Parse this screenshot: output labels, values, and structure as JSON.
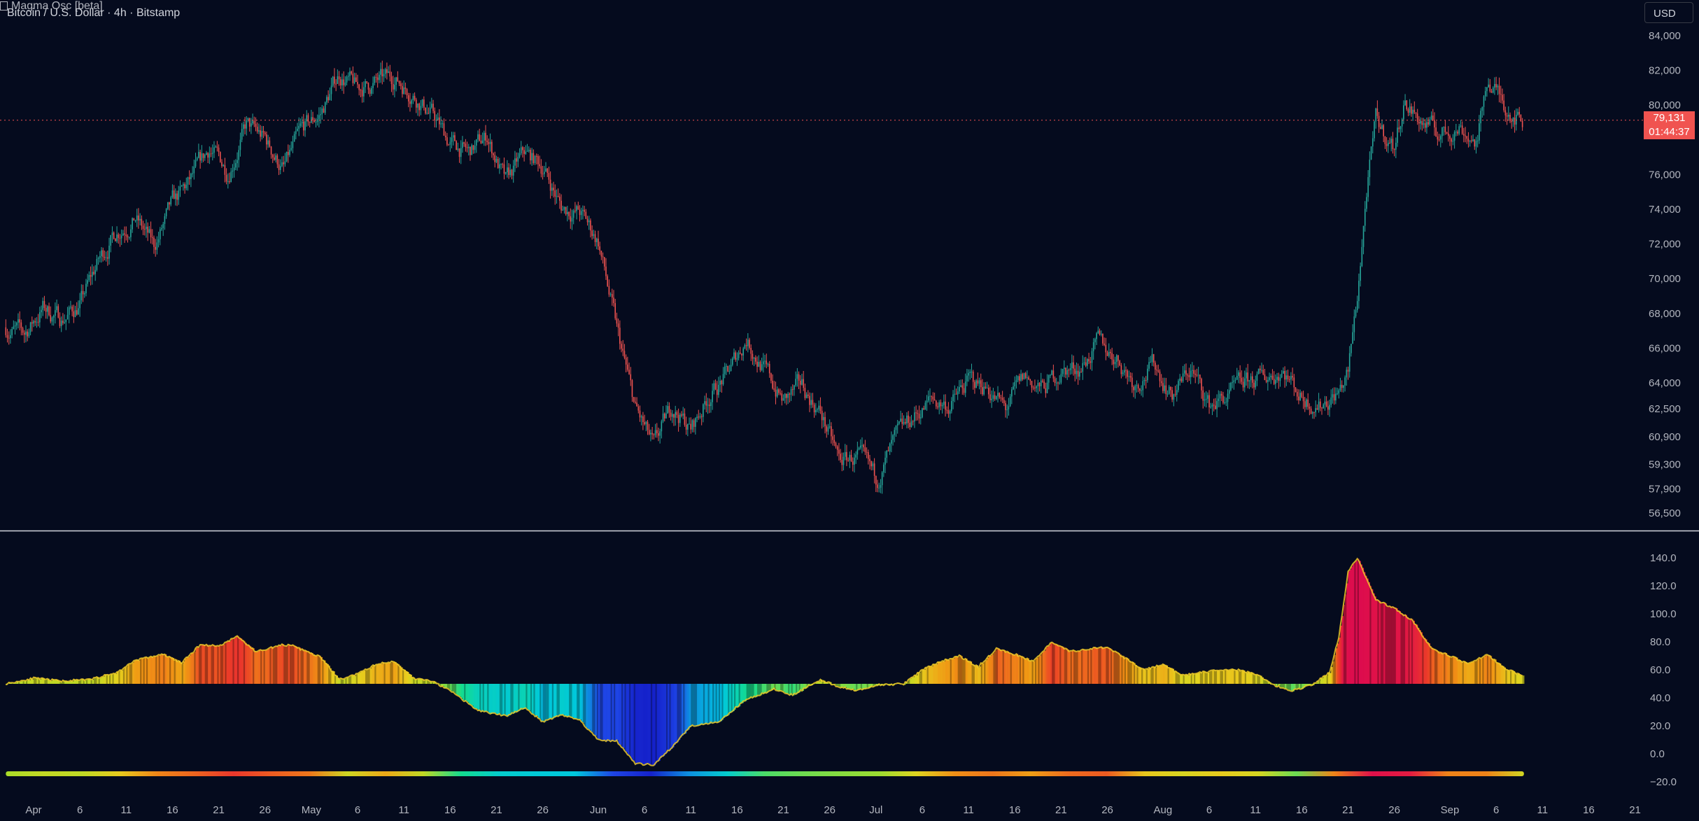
{
  "header": {
    "symbol_title": "Bitcoin / U.S. Dollar · 4h · Bitstamp",
    "currency_button": "USD"
  },
  "last_price": {
    "value": "79,131",
    "countdown": "01:44:37",
    "color": "#f05350"
  },
  "oscillator": {
    "title": "Magma Osc [beta]"
  },
  "colors": {
    "background": "#050b1e",
    "up_candle": "#26a69a",
    "down_candle": "#ef5350",
    "axis_text": "#b2b5be",
    "separator": "#d1d4dc"
  },
  "chart_data": [
    {
      "type": "candlestick",
      "title": "Bitcoin / U.S. Dollar · 4h · Bitstamp",
      "y_ticks": [
        84000,
        82000,
        80000,
        76000,
        74000,
        72000,
        70000,
        68000,
        66000,
        64000,
        62500,
        60900,
        59300,
        57900,
        56500
      ],
      "y_tick_labels": [
        "84,000",
        "82,000",
        "80,000",
        "76,000",
        "74,000",
        "72,000",
        "70,000",
        "68,000",
        "66,000",
        "64,000",
        "62,500",
        "60,900",
        "59,300",
        "57,900",
        "56,500"
      ],
      "last_price": 79131,
      "close_path": [
        {
          "date": "2024-03-29",
          "close": 67200
        },
        {
          "date": "2024-03-31",
          "close": 66800
        },
        {
          "date": "2024-04-02",
          "close": 68300
        },
        {
          "date": "2024-04-04",
          "close": 67700
        },
        {
          "date": "2024-04-06",
          "close": 68500
        },
        {
          "date": "2024-04-08",
          "close": 71000
        },
        {
          "date": "2024-04-10",
          "close": 72800
        },
        {
          "date": "2024-04-12",
          "close": 73500
        },
        {
          "date": "2024-04-14",
          "close": 71800
        },
        {
          "date": "2024-04-16",
          "close": 74200
        },
        {
          "date": "2024-04-18",
          "close": 75600
        },
        {
          "date": "2024-04-20",
          "close": 77500
        },
        {
          "date": "2024-04-22",
          "close": 76200
        },
        {
          "date": "2024-04-24",
          "close": 78800
        },
        {
          "date": "2024-04-26",
          "close": 78000
        },
        {
          "date": "2024-04-28",
          "close": 76300
        },
        {
          "date": "2024-04-30",
          "close": 78500
        },
        {
          "date": "2024-05-02",
          "close": 79500
        },
        {
          "date": "2024-05-04",
          "close": 81800
        },
        {
          "date": "2024-05-06",
          "close": 80900
        },
        {
          "date": "2024-05-08",
          "close": 81300
        },
        {
          "date": "2024-05-10",
          "close": 81600
        },
        {
          "date": "2024-05-12",
          "close": 80700
        },
        {
          "date": "2024-05-14",
          "close": 79500
        },
        {
          "date": "2024-05-16",
          "close": 77800
        },
        {
          "date": "2024-05-18",
          "close": 77200
        },
        {
          "date": "2024-05-20",
          "close": 78200
        },
        {
          "date": "2024-05-22",
          "close": 75500
        },
        {
          "date": "2024-05-24",
          "close": 77200
        },
        {
          "date": "2024-05-26",
          "close": 76500
        },
        {
          "date": "2024-05-28",
          "close": 74100
        },
        {
          "date": "2024-05-30",
          "close": 73800
        },
        {
          "date": "2024-06-01",
          "close": 72200
        },
        {
          "date": "2024-06-03",
          "close": 67000
        },
        {
          "date": "2024-06-05",
          "close": 62500
        },
        {
          "date": "2024-06-07",
          "close": 60200
        },
        {
          "date": "2024-06-09",
          "close": 62700
        },
        {
          "date": "2024-06-11",
          "close": 61300
        },
        {
          "date": "2024-06-13",
          "close": 63300
        },
        {
          "date": "2024-06-15",
          "close": 64500
        },
        {
          "date": "2024-06-17",
          "close": 66600
        },
        {
          "date": "2024-06-19",
          "close": 64700
        },
        {
          "date": "2024-06-21",
          "close": 62900
        },
        {
          "date": "2024-06-23",
          "close": 63800
        },
        {
          "date": "2024-06-25",
          "close": 62300
        },
        {
          "date": "2024-06-27",
          "close": 59500
        },
        {
          "date": "2024-06-29",
          "close": 59700
        },
        {
          "date": "2024-07-01",
          "close": 58400
        },
        {
          "date": "2024-07-03",
          "close": 60500
        },
        {
          "date": "2024-07-05",
          "close": 62000
        },
        {
          "date": "2024-07-07",
          "close": 63000
        },
        {
          "date": "2024-07-09",
          "close": 62700
        },
        {
          "date": "2024-07-11",
          "close": 64100
        },
        {
          "date": "2024-07-13",
          "close": 63800
        },
        {
          "date": "2024-07-15",
          "close": 62400
        },
        {
          "date": "2024-07-17",
          "close": 64300
        },
        {
          "date": "2024-07-19",
          "close": 63600
        },
        {
          "date": "2024-07-21",
          "close": 64700
        },
        {
          "date": "2024-07-23",
          "close": 64900
        },
        {
          "date": "2024-07-25",
          "close": 66200
        },
        {
          "date": "2024-07-27",
          "close": 65500
        },
        {
          "date": "2024-07-29",
          "close": 64000
        },
        {
          "date": "2024-07-31",
          "close": 65100
        },
        {
          "date": "2024-08-02",
          "close": 63300
        },
        {
          "date": "2024-08-04",
          "close": 64800
        },
        {
          "date": "2024-08-06",
          "close": 62700
        },
        {
          "date": "2024-08-08",
          "close": 63200
        },
        {
          "date": "2024-08-10",
          "close": 64000
        },
        {
          "date": "2024-08-12",
          "close": 64300
        },
        {
          "date": "2024-08-14",
          "close": 64800
        },
        {
          "date": "2024-08-16",
          "close": 63200
        },
        {
          "date": "2024-08-18",
          "close": 62800
        },
        {
          "date": "2024-08-20",
          "close": 63500
        },
        {
          "date": "2024-08-21",
          "close": 64500
        },
        {
          "date": "2024-08-22",
          "close": 69000
        },
        {
          "date": "2024-08-23",
          "close": 75000
        },
        {
          "date": "2024-08-24",
          "close": 79000
        },
        {
          "date": "2024-08-26",
          "close": 77500
        },
        {
          "date": "2024-08-27",
          "close": 80200
        },
        {
          "date": "2024-08-29",
          "close": 79000
        },
        {
          "date": "2024-08-31",
          "close": 78300
        },
        {
          "date": "2024-09-02",
          "close": 78800
        },
        {
          "date": "2024-09-04",
          "close": 77800
        },
        {
          "date": "2024-09-05",
          "close": 81500
        },
        {
          "date": "2024-09-07",
          "close": 80000
        },
        {
          "date": "2024-09-09",
          "close": 79131
        }
      ]
    },
    {
      "type": "area",
      "title": "Magma Osc [beta]",
      "y_ticks": [
        140,
        120,
        100,
        80,
        60,
        40,
        20,
        0,
        -20
      ],
      "y_tick_labels": [
        "140.0",
        "120.0",
        "100.0",
        "80.0",
        "60.0",
        "40.0",
        "20.0",
        "0.0",
        "−20.0"
      ],
      "baseline": 50,
      "series": [
        {
          "points": [
            {
              "date": "2024-03-29",
              "value": 50
            },
            {
              "date": "2024-04-01",
              "value": 54
            },
            {
              "date": "2024-04-04",
              "value": 52
            },
            {
              "date": "2024-04-07",
              "value": 53
            },
            {
              "date": "2024-04-10",
              "value": 58
            },
            {
              "date": "2024-04-12",
              "value": 67
            },
            {
              "date": "2024-04-15",
              "value": 71
            },
            {
              "date": "2024-04-17",
              "value": 65
            },
            {
              "date": "2024-04-19",
              "value": 78
            },
            {
              "date": "2024-04-21",
              "value": 77
            },
            {
              "date": "2024-04-23",
              "value": 84
            },
            {
              "date": "2024-04-25",
              "value": 73
            },
            {
              "date": "2024-04-28",
              "value": 78
            },
            {
              "date": "2024-04-29",
              "value": 77
            },
            {
              "date": "2024-05-02",
              "value": 69
            },
            {
              "date": "2024-05-04",
              "value": 53
            },
            {
              "date": "2024-05-06",
              "value": 57
            },
            {
              "date": "2024-05-08",
              "value": 64
            },
            {
              "date": "2024-05-10",
              "value": 66
            },
            {
              "date": "2024-05-12",
              "value": 54
            },
            {
              "date": "2024-05-14",
              "value": 52
            },
            {
              "date": "2024-05-16",
              "value": 45
            },
            {
              "date": "2024-05-19",
              "value": 31
            },
            {
              "date": "2024-05-22",
              "value": 27
            },
            {
              "date": "2024-05-24",
              "value": 33
            },
            {
              "date": "2024-05-26",
              "value": 23
            },
            {
              "date": "2024-05-28",
              "value": 28
            },
            {
              "date": "2024-05-30",
              "value": 24
            },
            {
              "date": "2024-06-01",
              "value": 10
            },
            {
              "date": "2024-06-03",
              "value": 9
            },
            {
              "date": "2024-06-05",
              "value": -7
            },
            {
              "date": "2024-06-07",
              "value": -8
            },
            {
              "date": "2024-06-09",
              "value": 5
            },
            {
              "date": "2024-06-11",
              "value": 20
            },
            {
              "date": "2024-06-14",
              "value": 23
            },
            {
              "date": "2024-06-17",
              "value": 39
            },
            {
              "date": "2024-06-20",
              "value": 46
            },
            {
              "date": "2024-06-22",
              "value": 42
            },
            {
              "date": "2024-06-25",
              "value": 53
            },
            {
              "date": "2024-06-27",
              "value": 48
            },
            {
              "date": "2024-06-29",
              "value": 45
            },
            {
              "date": "2024-07-01",
              "value": 49
            },
            {
              "date": "2024-07-04",
              "value": 50
            },
            {
              "date": "2024-07-06",
              "value": 60
            },
            {
              "date": "2024-07-08",
              "value": 66
            },
            {
              "date": "2024-07-10",
              "value": 70
            },
            {
              "date": "2024-07-12",
              "value": 62
            },
            {
              "date": "2024-07-14",
              "value": 75
            },
            {
              "date": "2024-07-16",
              "value": 71
            },
            {
              "date": "2024-07-18",
              "value": 66
            },
            {
              "date": "2024-07-20",
              "value": 80
            },
            {
              "date": "2024-07-22",
              "value": 73
            },
            {
              "date": "2024-07-24",
              "value": 75
            },
            {
              "date": "2024-07-26",
              "value": 76
            },
            {
              "date": "2024-07-28",
              "value": 68
            },
            {
              "date": "2024-07-30",
              "value": 60
            },
            {
              "date": "2024-08-01",
              "value": 64
            },
            {
              "date": "2024-08-03",
              "value": 56
            },
            {
              "date": "2024-08-06",
              "value": 59
            },
            {
              "date": "2024-08-09",
              "value": 60
            },
            {
              "date": "2024-08-11",
              "value": 57
            },
            {
              "date": "2024-08-13",
              "value": 49
            },
            {
              "date": "2024-08-15",
              "value": 45
            },
            {
              "date": "2024-08-17",
              "value": 49
            },
            {
              "date": "2024-08-19",
              "value": 58
            },
            {
              "date": "2024-08-20",
              "value": 83
            },
            {
              "date": "2024-08-21",
              "value": 130
            },
            {
              "date": "2024-08-22",
              "value": 140
            },
            {
              "date": "2024-08-24",
              "value": 110
            },
            {
              "date": "2024-08-26",
              "value": 104
            },
            {
              "date": "2024-08-28",
              "value": 95
            },
            {
              "date": "2024-08-30",
              "value": 75
            },
            {
              "date": "2024-09-01",
              "value": 70
            },
            {
              "date": "2024-09-03",
              "value": 64
            },
            {
              "date": "2024-09-05",
              "value": 71
            },
            {
              "date": "2024-09-07",
              "value": 61
            },
            {
              "date": "2024-09-09",
              "value": 55
            }
          ]
        }
      ]
    }
  ],
  "x_axis": {
    "labels": [
      {
        "text": "Apr",
        "date": "2024-04-01"
      },
      {
        "text": "6",
        "date": "2024-04-06"
      },
      {
        "text": "11",
        "date": "2024-04-11"
      },
      {
        "text": "16",
        "date": "2024-04-16"
      },
      {
        "text": "21",
        "date": "2024-04-21"
      },
      {
        "text": "26",
        "date": "2024-04-26"
      },
      {
        "text": "May",
        "date": "2024-05-01"
      },
      {
        "text": "6",
        "date": "2024-05-06"
      },
      {
        "text": "11",
        "date": "2024-05-11"
      },
      {
        "text": "16",
        "date": "2024-05-16"
      },
      {
        "text": "21",
        "date": "2024-05-21"
      },
      {
        "text": "26",
        "date": "2024-05-26"
      },
      {
        "text": "Jun",
        "date": "2024-06-01"
      },
      {
        "text": "6",
        "date": "2024-06-06"
      },
      {
        "text": "11",
        "date": "2024-06-11"
      },
      {
        "text": "16",
        "date": "2024-06-16"
      },
      {
        "text": "21",
        "date": "2024-06-21"
      },
      {
        "text": "26",
        "date": "2024-06-26"
      },
      {
        "text": "Jul",
        "date": "2024-07-01"
      },
      {
        "text": "6",
        "date": "2024-07-06"
      },
      {
        "text": "11",
        "date": "2024-07-11"
      },
      {
        "text": "16",
        "date": "2024-07-16"
      },
      {
        "text": "21",
        "date": "2024-07-21"
      },
      {
        "text": "26",
        "date": "2024-07-26"
      },
      {
        "text": "Aug",
        "date": "2024-08-01"
      },
      {
        "text": "6",
        "date": "2024-08-06"
      },
      {
        "text": "11",
        "date": "2024-08-11"
      },
      {
        "text": "16",
        "date": "2024-08-16"
      },
      {
        "text": "21",
        "date": "2024-08-21"
      },
      {
        "text": "26",
        "date": "2024-08-26"
      },
      {
        "text": "Sep",
        "date": "2024-09-01"
      },
      {
        "text": "6",
        "date": "2024-09-06"
      },
      {
        "text": "11",
        "date": "2024-09-11"
      },
      {
        "text": "16",
        "date": "2024-09-16"
      },
      {
        "text": "21",
        "date": "2024-09-21"
      }
    ]
  }
}
